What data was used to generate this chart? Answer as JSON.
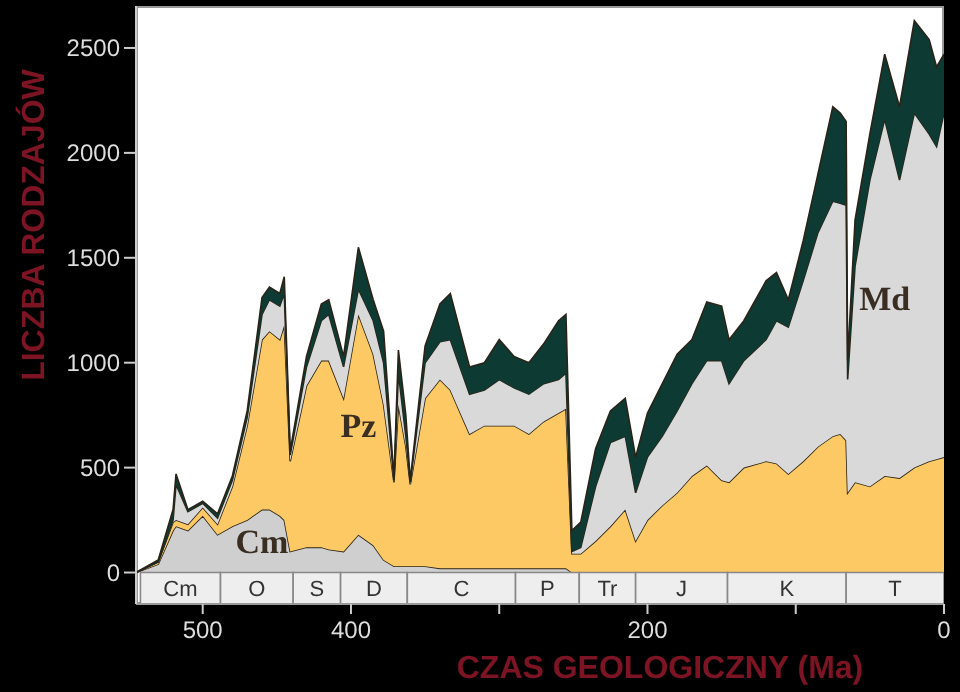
{
  "chart_data": {
    "type": "area",
    "stacked": true,
    "xlabel": "CZAS GEOLOGICZNY (Ma)",
    "ylabel": "LICZBA RODZAJÓW",
    "x": [
      545,
      530,
      520,
      518,
      510,
      500,
      490,
      480,
      470,
      460,
      455,
      448,
      445,
      441,
      430,
      420,
      415,
      405,
      395,
      385,
      378,
      371,
      368,
      363,
      360,
      350,
      340,
      333,
      320,
      310,
      300,
      290,
      280,
      270,
      260,
      255,
      251,
      245,
      235,
      225,
      215,
      208,
      200,
      190,
      180,
      170,
      160,
      150,
      145,
      135,
      120,
      113,
      105,
      95,
      85,
      75,
      70,
      66,
      65,
      60,
      50,
      40,
      30,
      20,
      10,
      5,
      0
    ],
    "series": [
      {
        "name": "Cm",
        "color": "#cfcfcf",
        "values": [
          0,
          40,
          200,
          220,
          200,
          270,
          180,
          220,
          250,
          300,
          300,
          270,
          250,
          100,
          120,
          120,
          110,
          100,
          180,
          130,
          60,
          30,
          30,
          30,
          30,
          30,
          20,
          20,
          20,
          20,
          20,
          20,
          20,
          20,
          20,
          20,
          0,
          0,
          0,
          0,
          0,
          0,
          0,
          0,
          0,
          0,
          0,
          0,
          0,
          0,
          0,
          0,
          0,
          0,
          0,
          0,
          0,
          0,
          0,
          0,
          0,
          0,
          0,
          0,
          0,
          0,
          0
        ]
      },
      {
        "name": "Pz",
        "color": "#fcc964",
        "values": [
          0,
          10,
          40,
          30,
          30,
          40,
          50,
          190,
          450,
          810,
          850,
          840,
          930,
          430,
          770,
          890,
          900,
          730,
          1050,
          910,
          740,
          400,
          770,
          570,
          390,
          800,
          900,
          850,
          640,
          680,
          680,
          680,
          640,
          700,
          740,
          760,
          90,
          90,
          150,
          220,
          300,
          150,
          250,
          320,
          380,
          460,
          510,
          440,
          430,
          500,
          530,
          520,
          470,
          530,
          600,
          650,
          660,
          630,
          380,
          430,
          410,
          460,
          450,
          500,
          530,
          540,
          550
        ]
      },
      {
        "name": "Md",
        "color": "#d9d9d9",
        "values": [
          0,
          0,
          10,
          170,
          60,
          20,
          30,
          30,
          40,
          120,
          150,
          160,
          150,
          30,
          90,
          190,
          220,
          150,
          120,
          160,
          200,
          10,
          150,
          50,
          10,
          170,
          180,
          240,
          190,
          170,
          220,
          180,
          190,
          180,
          160,
          170,
          10,
          30,
          260,
          400,
          350,
          230,
          300,
          330,
          390,
          440,
          500,
          570,
          470,
          510,
          580,
          680,
          700,
          860,
          1020,
          1120,
          1100,
          1120,
          540,
          1030,
          1460,
          1700,
          1420,
          1690,
          1560,
          1490,
          1640
        ]
      },
      {
        "color": "#0d3b33",
        "values": [
          0,
          10,
          50,
          50,
          10,
          10,
          20,
          20,
          30,
          80,
          60,
          60,
          80,
          20,
          50,
          80,
          70,
          50,
          200,
          100,
          150,
          10,
          110,
          100,
          10,
          80,
          180,
          220,
          130,
          130,
          190,
          150,
          150,
          190,
          280,
          280,
          100,
          120,
          180,
          150,
          180,
          170,
          210,
          250,
          270,
          210,
          280,
          260,
          210,
          190,
          280,
          230,
          130,
          190,
          280,
          450,
          430,
          400,
          90,
          220,
          220,
          310,
          350,
          440,
          450,
          380,
          280
        ]
      }
    ],
    "xlim": [
      545,
      0
    ],
    "ylim": [
      -150,
      2700
    ],
    "xticks": [
      {
        "value": 500,
        "label": "500"
      },
      400,
      {
        "value": 300,
        "label": null
      },
      200,
      {
        "value": 100,
        "label": null
      },
      0
    ],
    "yticks": [
      0,
      500,
      1000,
      1500,
      2000,
      2500
    ],
    "bands": [
      {
        "axis": "x",
        "from": 542,
        "to": 488,
        "label": "Cm",
        "color": "#eeeeee"
      },
      {
        "axis": "x",
        "from": 488,
        "to": 439,
        "label": "O",
        "color": "#eeeeee"
      },
      {
        "axis": "x",
        "from": 439,
        "to": 407,
        "label": "S",
        "color": "#eeeeee"
      },
      {
        "axis": "x",
        "from": 407,
        "to": 362,
        "label": "D",
        "color": "#eeeeee"
      },
      {
        "axis": "x",
        "from": 362,
        "to": 289,
        "label": "C",
        "color": "#eeeeee"
      },
      {
        "axis": "x",
        "from": 289,
        "to": 246,
        "label": "P",
        "color": "#eeeeee"
      },
      {
        "axis": "x",
        "from": 246,
        "to": 208,
        "label": "Tr",
        "color": "#eeeeee"
      },
      {
        "axis": "x",
        "from": 208,
        "to": 146,
        "label": "J",
        "color": "#eeeeee"
      },
      {
        "axis": "x",
        "from": 146,
        "to": 66,
        "label": "K",
        "color": "#eeeeee"
      },
      {
        "axis": "x",
        "from": 66,
        "to": 0,
        "label": "T",
        "color": "#eeeeee"
      }
    ],
    "grid": false,
    "legend": false
  }
}
